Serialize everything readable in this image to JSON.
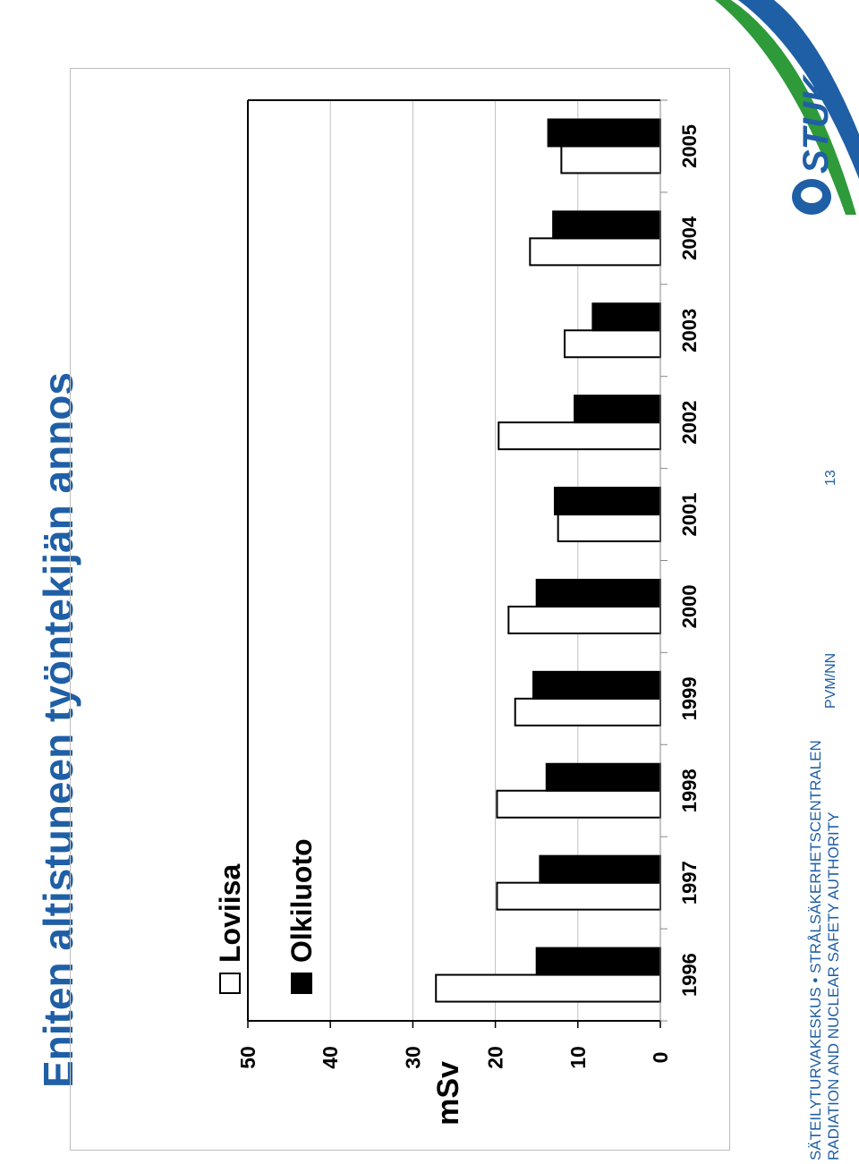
{
  "slide": {
    "title": "Eniten altistuneen työntekijän annos",
    "footer_line1": "SÄTEILYTURVAKESKUS • STRÅLSÄKERHETSCENTRALEN",
    "footer_line2": "RADIATION AND NUCLEAR SAFETY AUTHORITY",
    "footer_date": "PVM/NN",
    "page_number": "13",
    "logo_text": "STUK"
  },
  "colors": {
    "title": "#1f5fa6",
    "logo_green": "#2e9a3a",
    "logo_blue": "#1f5fa6",
    "series_loviisa": "#ffffff",
    "series_olkiluoto": "#000000"
  },
  "chart_data": {
    "type": "bar",
    "ylabel": "mSv",
    "xlabel": "",
    "ylim": [
      0,
      50
    ],
    "y_ticks": [
      "0",
      "10",
      "20",
      "30",
      "40",
      "50"
    ],
    "categories": [
      "1996",
      "1997",
      "1998",
      "1999",
      "2000",
      "2001",
      "2002",
      "2003",
      "2004",
      "2005"
    ],
    "series": [
      {
        "name": "Loviisa",
        "color": "#ffffff",
        "values": [
          27.2,
          19.8,
          19.8,
          17.6,
          18.4,
          12.4,
          19.6,
          11.6,
          15.8,
          12.0
        ]
      },
      {
        "name": "Olkiluoto",
        "color": "#000000",
        "values": [
          15.0,
          14.6,
          13.8,
          15.4,
          15.0,
          12.8,
          10.4,
          8.2,
          13.0,
          13.6
        ]
      }
    ],
    "grid": true,
    "legend_position": "top-left"
  }
}
